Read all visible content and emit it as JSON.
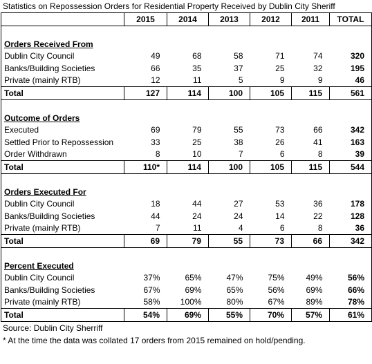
{
  "title": "Statistics on Repossession Orders for Residential Property Received by Dublin City Sheriff",
  "header": {
    "columns": [
      "2015",
      "2014",
      "2013",
      "2012",
      "2011",
      "TOTAL"
    ]
  },
  "sections": [
    {
      "heading": "Orders Received From",
      "rows": [
        {
          "label": "Dublin City Council",
          "cells": [
            "49",
            "68",
            "58",
            "71",
            "74",
            "320"
          ]
        },
        {
          "label": "Banks/Building Societies",
          "cells": [
            "66",
            "35",
            "37",
            "25",
            "32",
            "195"
          ]
        },
        {
          "label": "Private (mainly RTB)",
          "cells": [
            "12",
            "11",
            "5",
            "9",
            "9",
            "46"
          ]
        }
      ],
      "total": {
        "label": "Total",
        "cells": [
          "127",
          "114",
          "100",
          "105",
          "115",
          "561"
        ]
      }
    },
    {
      "heading": "Outcome of Orders",
      "rows": [
        {
          "label": "Executed",
          "cells": [
            "69",
            "79",
            "55",
            "73",
            "66",
            "342"
          ]
        },
        {
          "label": "Settled Prior to Repossession",
          "cells": [
            "33",
            "25",
            "38",
            "26",
            "41",
            "163"
          ]
        },
        {
          "label": "Order Withdrawn",
          "cells": [
            "8",
            "10",
            "7",
            "6",
            "8",
            "39"
          ]
        }
      ],
      "total": {
        "label": "Total",
        "cells": [
          "110*",
          "114",
          "100",
          "105",
          "115",
          "544"
        ]
      }
    },
    {
      "heading": "Orders Executed For",
      "rows": [
        {
          "label": "Dublin City Council",
          "cells": [
            "18",
            "44",
            "27",
            "53",
            "36",
            "178"
          ]
        },
        {
          "label": "Banks/Building Societies",
          "cells": [
            "44",
            "24",
            "24",
            "14",
            "22",
            "128"
          ]
        },
        {
          "label": "Private (mainly RTB)",
          "cells": [
            "7",
            "11",
            "4",
            "6",
            "8",
            "36"
          ]
        }
      ],
      "total": {
        "label": "Total",
        "cells": [
          "69",
          "79",
          "55",
          "73",
          "66",
          "342"
        ]
      }
    },
    {
      "heading": "Percent Executed",
      "rows": [
        {
          "label": "Dublin City Council",
          "cells": [
            "37%",
            "65%",
            "47%",
            "75%",
            "49%",
            "56%"
          ]
        },
        {
          "label": "Banks/Building Societies",
          "cells": [
            "67%",
            "69%",
            "65%",
            "56%",
            "69%",
            "66%"
          ]
        },
        {
          "label": "Private (mainly RTB)",
          "cells": [
            "58%",
            "100%",
            "80%",
            "67%",
            "89%",
            "78%"
          ]
        }
      ],
      "total": {
        "label": "Total",
        "cells": [
          "54%",
          "69%",
          "55%",
          "70%",
          "57%",
          "61%"
        ]
      }
    }
  ],
  "source": "Source: Dublin City Sherriff",
  "footnote": "* At the time the data was collated 17 orders from 2015 remained on hold/pending."
}
